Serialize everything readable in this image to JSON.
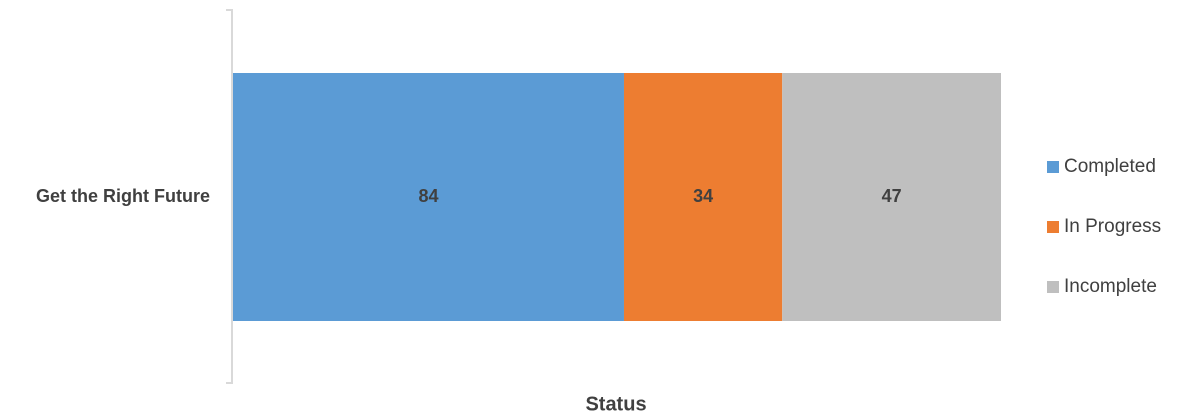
{
  "chart_data": {
    "type": "bar",
    "orientation": "horizontal",
    "stacked": true,
    "categories": [
      "Get the Right Future"
    ],
    "series": [
      {
        "name": "Completed",
        "values": [
          84
        ],
        "color": "#5B9BD5"
      },
      {
        "name": "In Progress",
        "values": [
          34
        ],
        "color": "#ED7D31"
      },
      {
        "name": "Incomplete",
        "values": [
          47
        ],
        "color": "#BFBFBF"
      }
    ],
    "title": "",
    "xlabel": "Status",
    "ylabel": "",
    "data_labels": true,
    "grid": false,
    "legend_position": "right"
  }
}
